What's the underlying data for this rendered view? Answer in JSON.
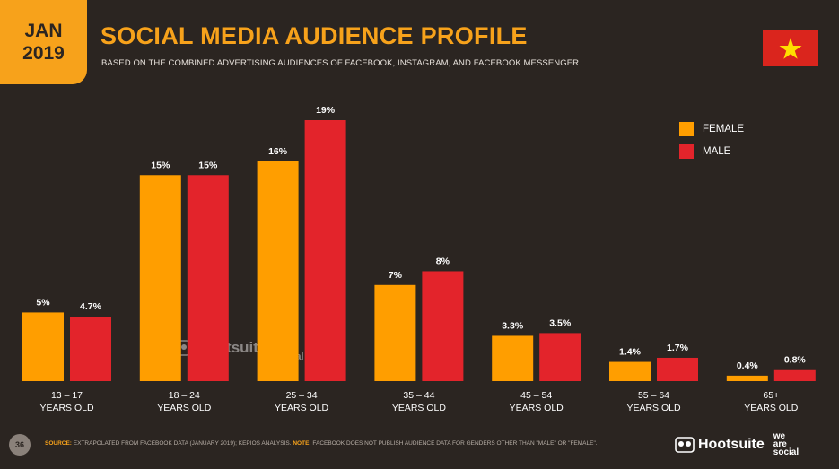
{
  "header": {
    "date_month": "JAN",
    "date_year": "2019",
    "title": "SOCIAL MEDIA AUDIENCE PROFILE",
    "subtitle": "BASED ON THE COMBINED ADVERTISING AUDIENCES OF FACEBOOK, INSTAGRAM, AND FACEBOOK MESSENGER"
  },
  "colors": {
    "background": "#2b2521",
    "accent": "#f7a21b",
    "female": "#ff9e00",
    "male": "#e3242b"
  },
  "flag": {
    "icon": "vietnam-flag-icon"
  },
  "chart_data": {
    "type": "bar",
    "categories": [
      [
        "13 – 17",
        "YEARS OLD"
      ],
      [
        "18 – 24",
        "YEARS OLD"
      ],
      [
        "25 – 34",
        "YEARS OLD"
      ],
      [
        "35 – 44",
        "YEARS OLD"
      ],
      [
        "45 – 54",
        "YEARS OLD"
      ],
      [
        "55 – 64",
        "YEARS OLD"
      ],
      [
        "65+",
        "YEARS OLD"
      ]
    ],
    "series": [
      {
        "name": "FEMALE",
        "values": [
          5,
          15,
          16,
          7,
          3.3,
          1.4,
          0.4
        ],
        "labels": [
          "5%",
          "15%",
          "16%",
          "7%",
          "3.3%",
          "1.4%",
          "0.4%"
        ]
      },
      {
        "name": "MALE",
        "values": [
          4.7,
          15,
          19,
          8,
          3.5,
          1.7,
          0.8
        ],
        "labels": [
          "4.7%",
          "15%",
          "19%",
          "8%",
          "3.5%",
          "1.7%",
          "0.8%"
        ]
      }
    ],
    "legend": "top-right",
    "grid": false,
    "ylim": [
      0,
      19
    ]
  },
  "watermark": {
    "brand": "Hootsuite",
    "partner_line1": "we",
    "partner_line2": "are",
    "partner_line3": "social"
  },
  "footer": {
    "page_number": "36",
    "source_label": "SOURCE:",
    "source_text": " EXTRAPOLATED FROM FACEBOOK DATA (JANUARY 2019); KEPIOS ANALYSIS. ",
    "note_label": "NOTE:",
    "note_text": " FACEBOOK DOES NOT PUBLISH AUDIENCE DATA FOR GENDERS OTHER THAN \"MALE\" OR \"FEMALE\".",
    "brand": "Hootsuite",
    "partner_line1": "we",
    "partner_line2": "are",
    "partner_line3": "social"
  }
}
